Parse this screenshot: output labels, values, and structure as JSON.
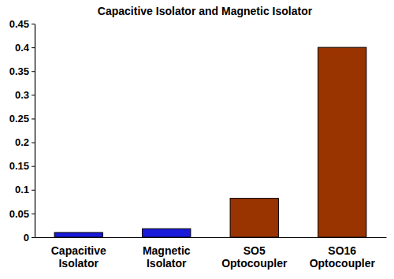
{
  "chart_data": {
    "type": "bar",
    "title": "Capacitive Isolator and Magnetic Isolator",
    "categories": [
      "Capacitive Isolator",
      "Magnetic Isolator",
      "SO5 Optocoupler",
      "SO16 Optocoupler"
    ],
    "values": [
      0.01,
      0.018,
      0.082,
      0.4
    ],
    "colors": [
      "#1a1adb",
      "#1a1adb",
      "#993300",
      "#993300"
    ],
    "ylim": [
      0,
      0.45
    ],
    "yticks": [
      0,
      0.05,
      0.1,
      0.15,
      0.2,
      0.25,
      0.3,
      0.35,
      0.4,
      0.45
    ],
    "grid": false
  }
}
